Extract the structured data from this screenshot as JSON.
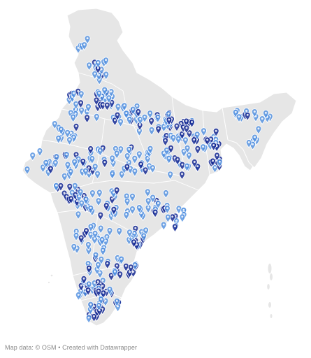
{
  "map": {
    "land_color": "#e6e6e6",
    "border_color": "#ffffff",
    "pin_light_color": "#4f8fe0",
    "pin_dark_color": "#0a1f8f",
    "pin_icon": "map-pin-icon"
  },
  "attribution": {
    "text": "Map data: © OSM • Created with Datawrapper"
  }
}
